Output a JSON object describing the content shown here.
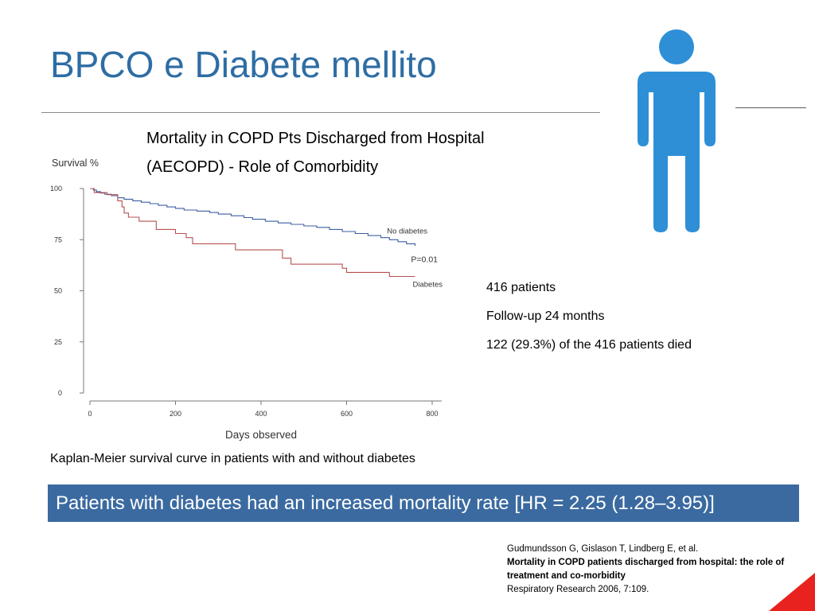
{
  "slide": {
    "title": "BPCO e Diabete mellito",
    "banner": "Patients with diabetes had an increased mortality rate [HR = 2.25 (1.28–3.95)]",
    "caption": "Kaplan-Meier survival curve in patients with and without diabetes"
  },
  "chart_heading": {
    "line1": "Mortality in COPD Pts Discharged from Hospital",
    "line2": "(AECOPD) - Role of Comorbidity"
  },
  "stats": {
    "patients": "416 patients",
    "followup": "Follow-up 24 months",
    "died": "122 (29.3%) of the 416 patients died"
  },
  "reference": {
    "authors": "Gudmundsson  G, Gislason T, Lindberg E, et al.",
    "title": "Mortality in COPD patients discharged from hospital: the role of treatment and co-morbidity",
    "journal": "Respiratory Research 2006, 7:109."
  },
  "colors": {
    "title": "#2e6da4",
    "banner_bg": "#3b6aa0",
    "person_icon": "#2e8fd6",
    "no_diabetes_line": "#3d5ea0",
    "diabetes_line": "#b85050",
    "corner_accent": "#e8231f"
  },
  "icons": {
    "person": "person-icon"
  },
  "chart_data": {
    "type": "line",
    "title": "",
    "xlabel": "Days observed",
    "ylabel": "Survival %",
    "xlim": [
      0,
      800
    ],
    "ylim": [
      0,
      100
    ],
    "xticks": [
      0,
      200,
      400,
      600,
      800
    ],
    "yticks": [
      0,
      25,
      50,
      75,
      100
    ],
    "grid": false,
    "annotation": "P=0.01",
    "series": [
      {
        "name": "No diabetes",
        "step": true,
        "x": [
          0,
          8,
          15,
          25,
          35,
          50,
          65,
          80,
          100,
          120,
          140,
          160,
          180,
          200,
          220,
          250,
          280,
          300,
          330,
          360,
          380,
          410,
          440,
          470,
          500,
          530,
          560,
          590,
          620,
          650,
          680,
          700,
          720,
          740,
          760
        ],
        "y": [
          100,
          99.3,
          98.5,
          97.8,
          97.2,
          96.5,
          95.5,
          94.8,
          94.0,
          93.3,
          92.6,
          91.8,
          91.0,
          90.3,
          89.5,
          89.0,
          88.3,
          87.5,
          86.7,
          85.8,
          85.0,
          84.0,
          83.2,
          82.5,
          81.7,
          81.0,
          80.0,
          79.0,
          78.0,
          77.0,
          76.0,
          75.0,
          74.0,
          73.0,
          72.0
        ]
      },
      {
        "name": "Diabetes",
        "step": true,
        "x": [
          0,
          10,
          40,
          65,
          75,
          80,
          90,
          115,
          155,
          200,
          225,
          240,
          340,
          450,
          470,
          520,
          590,
          600,
          650,
          700,
          760
        ],
        "y": [
          100,
          98,
          97,
          94,
          91,
          88,
          86,
          84,
          80,
          78,
          76,
          73,
          70,
          66,
          63,
          63,
          61,
          59,
          59,
          57,
          57
        ]
      }
    ]
  }
}
